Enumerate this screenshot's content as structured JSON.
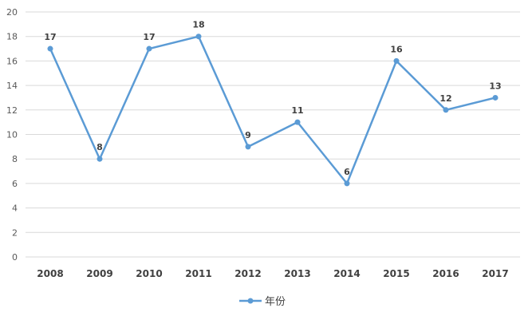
{
  "chart_data": {
    "type": "line",
    "categories": [
      "2008",
      "2009",
      "2010",
      "2011",
      "2012",
      "2013",
      "2014",
      "2015",
      "2016",
      "2017"
    ],
    "series": [
      {
        "name": "年份",
        "values": [
          17,
          8,
          17,
          18,
          9,
          11,
          6,
          16,
          12,
          13
        ],
        "color": "#5b9bd5"
      }
    ],
    "ylim": [
      0,
      20
    ],
    "yticks": [
      "0",
      "2",
      "4",
      "6",
      "8",
      "10",
      "12",
      "14",
      "16",
      "18",
      "20"
    ],
    "grid": true,
    "data_labels": true,
    "legend": "bottom-center"
  }
}
